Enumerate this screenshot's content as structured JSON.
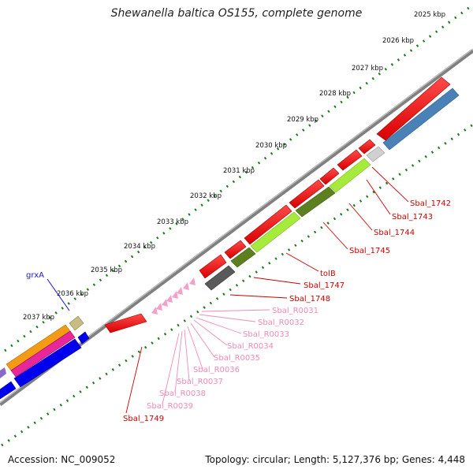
{
  "header": {
    "title": "Shewanella baltica OS155, complete genome"
  },
  "footer": {
    "accession": "Accession: NC_009052",
    "stats": "Topology: circular; Length: 5,127,376 bp; Genes: 4,448"
  },
  "scale": {
    "ticks": [
      "2025 kbp",
      "2026 kbp",
      "2027 kbp",
      "2028 kbp",
      "2029 kbp",
      "2030 kbp",
      "2031 kbp",
      "2032 kbp",
      "2033 kbp",
      "2034 kbp",
      "2035 kbp",
      "2036 kbp",
      "2037 kbp"
    ]
  },
  "gene_labels": [
    {
      "text": "grxA",
      "color": "#1a1ad6"
    },
    {
      "text": "Sbal_1742",
      "color": "#cc0000"
    },
    {
      "text": "Sbal_1743",
      "color": "#cc0000"
    },
    {
      "text": "Sbal_1744",
      "color": "#cc0000"
    },
    {
      "text": "Sbal_1745",
      "color": "#cc0000"
    },
    {
      "text": "tolB",
      "color": "#cc0000"
    },
    {
      "text": "Sbal_1747",
      "color": "#cc0000"
    },
    {
      "text": "Sbal_1748",
      "color": "#cc0000"
    },
    {
      "text": "Sbal_R0031",
      "color": "#f08ab8"
    },
    {
      "text": "Sbal_R0032",
      "color": "#f08ab8"
    },
    {
      "text": "Sbal_R0033",
      "color": "#f08ab8"
    },
    {
      "text": "Sbal_R0034",
      "color": "#f08ab8"
    },
    {
      "text": "Sbal_R0035",
      "color": "#f08ab8"
    },
    {
      "text": "Sbal_R0036",
      "color": "#f08ab8"
    },
    {
      "text": "Sbal_R0037",
      "color": "#f08ab8"
    },
    {
      "text": "Sbal_R0038",
      "color": "#f08ab8"
    },
    {
      "text": "Sbal_R0039",
      "color": "#f08ab8"
    },
    {
      "text": "Sbal_1749",
      "color": "#cc0000"
    }
  ],
  "colors": {
    "backbone": "#808080",
    "cds_forward": "#ee0000",
    "cds_reverse": "#0000ee",
    "rna": "#f5a0c8",
    "tick": "#1a7a1a",
    "gene_blue": "#4a82b8",
    "gene_lime": "#a6ea3c",
    "gene_olive": "#5e7f20",
    "gene_dark": "#5a5a5a",
    "gene_light_gray": "#d0d0d0",
    "gene_orange": "#f49a14",
    "gene_magenta": "#e8289a",
    "gene_khaki": "#c8bc82"
  }
}
